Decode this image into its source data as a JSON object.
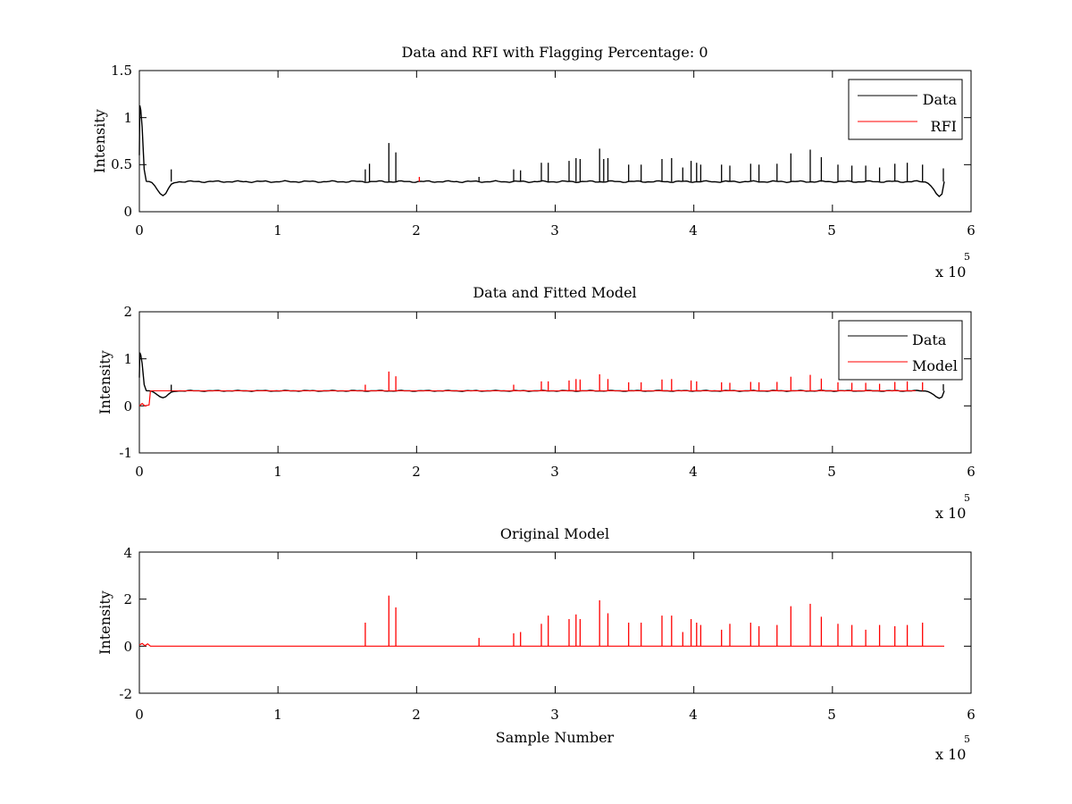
{
  "chart_data": [
    {
      "type": "line",
      "title": "Data and RFI with Flagging Percentage: 0",
      "xlabel": "",
      "ylabel": "Intensity",
      "xlim": [
        0,
        6
      ],
      "ylim": [
        0,
        1.5
      ],
      "x_ticks": [
        "0",
        "1",
        "2",
        "3",
        "4",
        "5",
        "6"
      ],
      "y_ticks": [
        "0",
        "0.5",
        "1",
        "1.5"
      ],
      "x_multiplier": {
        "base": "x 10",
        "exponent": "5"
      },
      "legend": {
        "position": "top-right",
        "entries": [
          "Data",
          "RFI"
        ]
      },
      "baseline": 0.32,
      "dips": [
        [
          0.17,
          0.17
        ],
        [
          5.77,
          0.16
        ]
      ],
      "start_peak": 1.13,
      "series": [
        {
          "name": "Data",
          "color": "#000000",
          "spikes": [
            [
              0.23,
              0.45
            ],
            [
              1.63,
              0.45
            ],
            [
              1.66,
              0.51
            ],
            [
              1.8,
              0.73
            ],
            [
              1.85,
              0.63
            ],
            [
              2.45,
              0.37
            ],
            [
              2.7,
              0.45
            ],
            [
              2.75,
              0.44
            ],
            [
              2.9,
              0.52
            ],
            [
              2.95,
              0.52
            ],
            [
              3.1,
              0.54
            ],
            [
              3.15,
              0.57
            ],
            [
              3.18,
              0.56
            ],
            [
              3.32,
              0.67
            ],
            [
              3.35,
              0.56
            ],
            [
              3.38,
              0.57
            ],
            [
              3.53,
              0.5
            ],
            [
              3.62,
              0.5
            ],
            [
              3.77,
              0.56
            ],
            [
              3.84,
              0.57
            ],
            [
              3.92,
              0.47
            ],
            [
              3.98,
              0.54
            ],
            [
              4.02,
              0.52
            ],
            [
              4.05,
              0.5
            ],
            [
              4.2,
              0.5
            ],
            [
              4.26,
              0.49
            ],
            [
              4.41,
              0.51
            ],
            [
              4.47,
              0.5
            ],
            [
              4.6,
              0.51
            ],
            [
              4.7,
              0.62
            ],
            [
              4.84,
              0.66
            ],
            [
              4.92,
              0.58
            ],
            [
              5.04,
              0.5
            ],
            [
              5.14,
              0.49
            ],
            [
              5.24,
              0.49
            ],
            [
              5.34,
              0.47
            ],
            [
              5.45,
              0.51
            ],
            [
              5.54,
              0.52
            ],
            [
              5.65,
              0.5
            ],
            [
              5.8,
              0.46
            ]
          ]
        },
        {
          "name": "RFI",
          "color": "#ff0000",
          "spikes": [
            [
              2.02,
              0.37
            ]
          ]
        }
      ]
    },
    {
      "type": "line",
      "title": "Data and Fitted Model",
      "xlabel": "",
      "ylabel": "Intensity",
      "xlim": [
        0,
        6
      ],
      "ylim": [
        -1,
        2
      ],
      "x_ticks": [
        "0",
        "1",
        "2",
        "3",
        "4",
        "5",
        "6"
      ],
      "y_ticks": [
        "-1",
        "0",
        "1",
        "2"
      ],
      "x_multiplier": {
        "base": "x 10",
        "exponent": "5"
      },
      "legend": {
        "position": "top-right",
        "entries": [
          "Data",
          "Model"
        ]
      },
      "baseline": 0.32,
      "dips": [
        [
          0.17,
          0.17
        ],
        [
          5.77,
          0.16
        ]
      ],
      "start_peak": 1.13,
      "series": [
        {
          "name": "Data",
          "color": "#000000",
          "spikes": [
            [
              0.23,
              0.45
            ],
            [
              5.8,
              0.46
            ]
          ]
        },
        {
          "name": "Model",
          "color": "#ff0000",
          "spikes": [
            [
              1.63,
              0.45
            ],
            [
              1.8,
              0.73
            ],
            [
              1.85,
              0.63
            ],
            [
              2.7,
              0.45
            ],
            [
              2.9,
              0.52
            ],
            [
              2.95,
              0.52
            ],
            [
              3.1,
              0.54
            ],
            [
              3.15,
              0.57
            ],
            [
              3.18,
              0.56
            ],
            [
              3.32,
              0.67
            ],
            [
              3.38,
              0.57
            ],
            [
              3.53,
              0.5
            ],
            [
              3.62,
              0.5
            ],
            [
              3.77,
              0.56
            ],
            [
              3.84,
              0.57
            ],
            [
              3.98,
              0.54
            ],
            [
              4.02,
              0.52
            ],
            [
              4.2,
              0.5
            ],
            [
              4.26,
              0.49
            ],
            [
              4.41,
              0.51
            ],
            [
              4.47,
              0.5
            ],
            [
              4.6,
              0.51
            ],
            [
              4.7,
              0.62
            ],
            [
              4.84,
              0.66
            ],
            [
              4.92,
              0.58
            ],
            [
              5.04,
              0.5
            ],
            [
              5.14,
              0.49
            ],
            [
              5.24,
              0.49
            ],
            [
              5.34,
              0.47
            ],
            [
              5.45,
              0.51
            ],
            [
              5.54,
              0.52
            ],
            [
              5.65,
              0.5
            ]
          ]
        }
      ]
    },
    {
      "type": "line",
      "title": "Original Model",
      "xlabel": "Sample Number",
      "ylabel": "Intensity",
      "xlim": [
        0,
        6
      ],
      "ylim": [
        -2,
        4
      ],
      "x_ticks": [
        "0",
        "1",
        "2",
        "3",
        "4",
        "5",
        "6"
      ],
      "y_ticks": [
        "-2",
        "0",
        "2",
        "4"
      ],
      "x_multiplier": {
        "base": "x 10",
        "exponent": "5"
      },
      "baseline": 0,
      "series": [
        {
          "name": "Model",
          "color": "#ff0000",
          "spikes": [
            [
              1.63,
              1.0
            ],
            [
              1.8,
              2.15
            ],
            [
              1.85,
              1.65
            ],
            [
              2.45,
              0.35
            ],
            [
              2.7,
              0.55
            ],
            [
              2.75,
              0.6
            ],
            [
              2.9,
              0.95
            ],
            [
              2.95,
              1.3
            ],
            [
              3.1,
              1.15
            ],
            [
              3.15,
              1.35
            ],
            [
              3.18,
              1.15
            ],
            [
              3.32,
              1.95
            ],
            [
              3.38,
              1.4
            ],
            [
              3.53,
              1.0
            ],
            [
              3.62,
              1.0
            ],
            [
              3.77,
              1.3
            ],
            [
              3.84,
              1.3
            ],
            [
              3.92,
              0.6
            ],
            [
              3.98,
              1.15
            ],
            [
              4.02,
              1.0
            ],
            [
              4.05,
              0.9
            ],
            [
              4.2,
              0.7
            ],
            [
              4.26,
              0.95
            ],
            [
              4.41,
              1.0
            ],
            [
              4.47,
              0.85
            ],
            [
              4.6,
              0.9
            ],
            [
              4.7,
              1.7
            ],
            [
              4.84,
              1.8
            ],
            [
              4.92,
              1.25
            ],
            [
              5.04,
              0.95
            ],
            [
              5.14,
              0.9
            ],
            [
              5.24,
              0.7
            ],
            [
              5.34,
              0.9
            ],
            [
              5.45,
              0.85
            ],
            [
              5.54,
              0.9
            ],
            [
              5.65,
              1.0
            ]
          ]
        }
      ]
    }
  ]
}
